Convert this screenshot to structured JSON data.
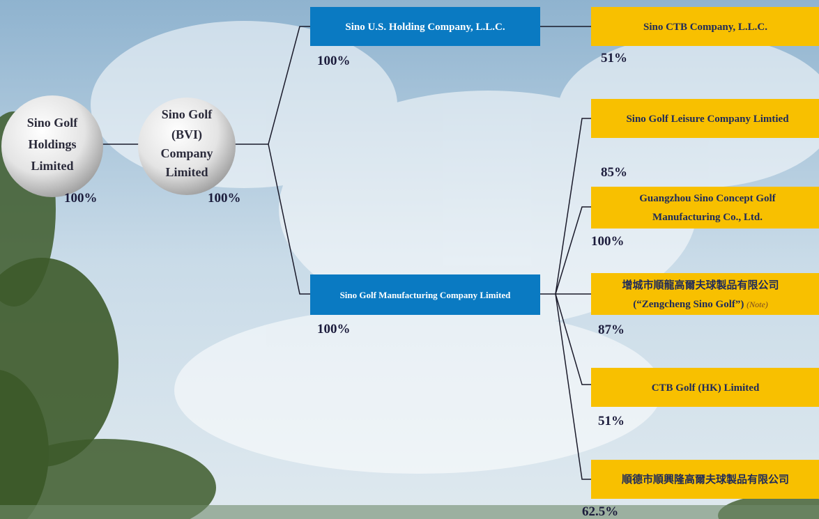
{
  "nodes": [
    {
      "label": [
        "Sino Golf",
        "Holdings",
        "Limited"
      ],
      "percent": "100%"
    },
    {
      "label": [
        "Sino Golf",
        "(BVI)",
        "Company",
        "Limited"
      ],
      "percent": "100%"
    },
    {
      "label": [
        "Sino U.S. Holding Company, L.L.C."
      ],
      "percent": "100%"
    },
    {
      "label": [
        "Sino Golf Manufacturing Company Limited"
      ],
      "percent": "100%"
    },
    {
      "label": [
        "Sino CTB Company, L.L.C."
      ],
      "percent": "51%"
    },
    {
      "label": [
        "Sino Golf Leisure Company Limtied"
      ],
      "percent": "85%"
    },
    {
      "label": [
        "Guangzhou Sino Concept Golf",
        "Manufacturing Co., Ltd."
      ],
      "percent": "100%"
    },
    {
      "label": [
        "增城市順龍高爾夫球製品有限公司",
        "(“Zengcheng Sino Golf”)"
      ],
      "note": "(Note)",
      "percent": "87%"
    },
    {
      "label": [
        "CTB Golf (HK) Limited"
      ],
      "percent": "51%"
    },
    {
      "label": [
        "順德市順興隆高爾夫球製品有限公司"
      ],
      "percent": "62.5%"
    }
  ]
}
